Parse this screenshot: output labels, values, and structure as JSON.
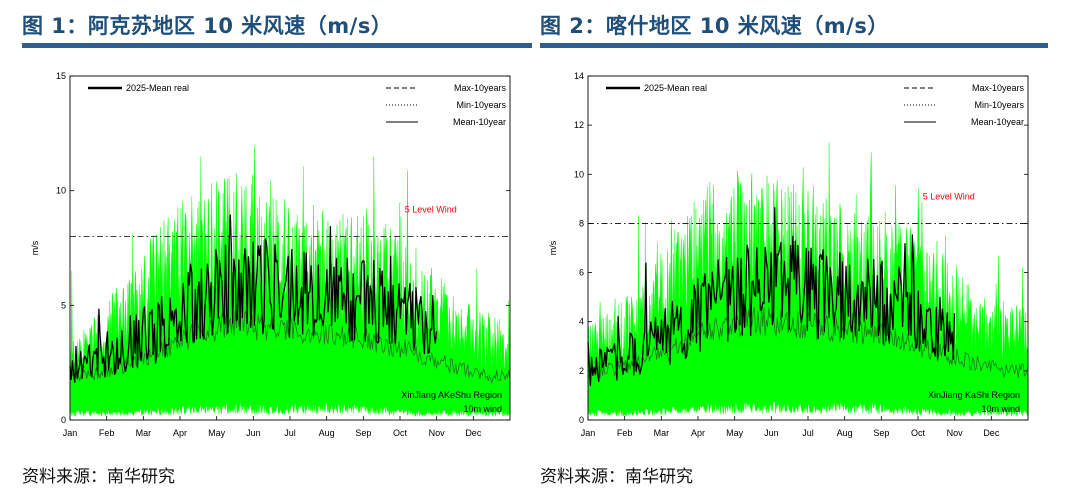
{
  "colors": {
    "title": "#1f4e79",
    "rule": "#2e5d8f",
    "range_fill": "#00ff00",
    "mean_line": "#000000",
    "annotation": "#ff0000"
  },
  "figures": [
    {
      "title": "图 1：阿克苏地区 10 米风速（m/s）",
      "source": "资料来源：南华研究"
    },
    {
      "title": "图 2：喀什地区 10 米风速（m/s）",
      "source": "资料来源：南华研究"
    }
  ],
  "chart_data": [
    {
      "type": "line",
      "title": "阿克苏地区 10 米风速（m/s）",
      "ylabel": "m/s",
      "xlabel": "",
      "ylim": [
        0,
        15
      ],
      "yticks": [
        0,
        5,
        10,
        15
      ],
      "months": [
        "Jan",
        "Feb",
        "Mar",
        "Apr",
        "May",
        "Jun",
        "Jul",
        "Aug",
        "Sep",
        "Oct",
        "Nov",
        "Dec"
      ],
      "legend": [
        "2025-Mean real",
        "Max-10years",
        "Min-10years",
        "Mean-10year"
      ],
      "reference_line": {
        "value": 8,
        "label": "5 Level Wind"
      },
      "region_text": [
        "XinJiang AKeShu Region",
        "10m wind"
      ],
      "series": [
        {
          "name": "Max-10years",
          "values": [
            3.5,
            5.2,
            7.2,
            8.6,
            8.9,
            8.3,
            7.8,
            7.5,
            7.3,
            6.2,
            4.6,
            3.8
          ]
        },
        {
          "name": "Min-10years",
          "values": [
            0.3,
            0.3,
            0.4,
            0.5,
            0.5,
            0.5,
            0.5,
            0.5,
            0.4,
            0.3,
            0.3,
            0.3
          ]
        },
        {
          "name": "Mean-10year",
          "values": [
            1.9,
            2.4,
            3.1,
            3.8,
            4.2,
            4.0,
            3.8,
            3.7,
            3.4,
            2.9,
            2.3,
            1.9
          ]
        },
        {
          "name": "2025-Mean real",
          "values": [
            2.6,
            3.5,
            4.2,
            5.6,
            6.3,
            6.2,
            5.7,
            5.6,
            5.3,
            4.4
          ]
        }
      ]
    },
    {
      "type": "line",
      "title": "喀什地区 10 米风速（m/s）",
      "ylabel": "m/s",
      "xlabel": "",
      "ylim": [
        0,
        14
      ],
      "yticks": [
        0,
        2,
        4,
        6,
        8,
        10,
        12,
        14
      ],
      "months": [
        "Jan",
        "Feb",
        "Mar",
        "Apr",
        "May",
        "Jun",
        "Jul",
        "Aug",
        "Sep",
        "Oct",
        "Nov",
        "Dec"
      ],
      "legend": [
        "2025-Mean real",
        "Max-10years",
        "Min-10years",
        "Mean-10year"
      ],
      "reference_line": {
        "value": 8,
        "label": "5 Level Wind"
      },
      "region_text": [
        "XinJiang KaShi Region",
        "10m wind"
      ],
      "series": [
        {
          "name": "Max-10years",
          "values": [
            3.6,
            4.8,
            6.8,
            8.4,
            8.5,
            8.1,
            7.6,
            7.3,
            7.0,
            6.0,
            4.6,
            3.9
          ]
        },
        {
          "name": "Min-10years",
          "values": [
            0.3,
            0.3,
            0.4,
            0.5,
            0.5,
            0.5,
            0.5,
            0.5,
            0.4,
            0.3,
            0.3,
            0.3
          ]
        },
        {
          "name": "Mean-10year",
          "values": [
            2.0,
            2.4,
            3.0,
            3.7,
            4.1,
            3.9,
            3.7,
            3.6,
            3.3,
            2.8,
            2.3,
            2.0
          ]
        },
        {
          "name": "2025-Mean real",
          "values": [
            2.3,
            3.0,
            3.9,
            5.0,
            5.6,
            5.8,
            5.4,
            5.2,
            4.8,
            4.0
          ]
        }
      ]
    }
  ]
}
